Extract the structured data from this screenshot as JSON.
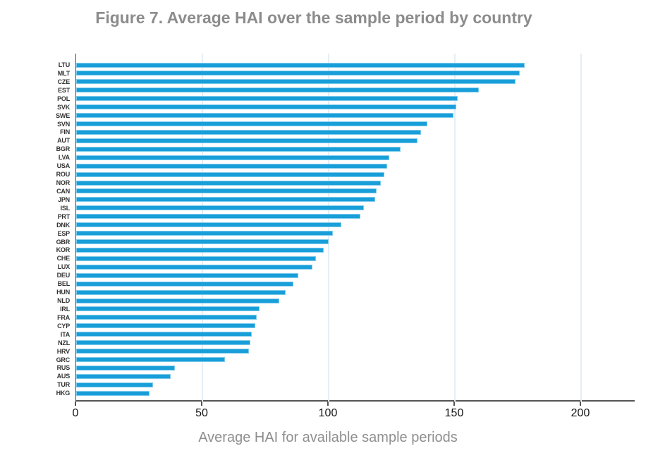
{
  "figure": {
    "title": "Figure 7. Average HAI over the sample period by country"
  },
  "chart_data": {
    "type": "bar",
    "orientation": "horizontal",
    "title": "Figure 7. Average HAI over the sample period by country",
    "xlabel": "Average HAI for available sample periods",
    "ylabel": "",
    "xlim": [
      0,
      200
    ],
    "xticks": [
      0,
      50,
      100,
      150,
      200
    ],
    "grid": "vertical-light",
    "legend": "none",
    "sort": "descending",
    "categories": [
      "LTU",
      "MLT",
      "CZE",
      "EST",
      "POL",
      "SVK",
      "SWE",
      "SVN",
      "FIN",
      "AUT",
      "BGR",
      "LVA",
      "USA",
      "ROU",
      "NOR",
      "CAN",
      "JPN",
      "ISL",
      "PRT",
      "DNK",
      "ESP",
      "GBR",
      "KOR",
      "CHE",
      "LUX",
      "DEU",
      "BEL",
      "HUN",
      "NLD",
      "IRL",
      "FRA",
      "CYP",
      "ITA",
      "NZL",
      "HRV",
      "GRC",
      "RUS",
      "AUS",
      "TUR",
      "HKG"
    ],
    "values": [
      177,
      175,
      173.5,
      159,
      150.5,
      150,
      149,
      138.5,
      136,
      134.5,
      128,
      123.5,
      122.5,
      121.5,
      120,
      118.5,
      118,
      113.5,
      112,
      104.5,
      101,
      99.5,
      97.5,
      94.5,
      93,
      87.5,
      85.5,
      82.5,
      80,
      72,
      71,
      70.5,
      69,
      68.5,
      68,
      58.5,
      38.5,
      37,
      30,
      28.5
    ]
  },
  "colors": {
    "bar_fill": "#189ED9",
    "bar_edge": "#7FCBEC",
    "gridline": "#E4EEF5",
    "axis_line": "#4A4A4A",
    "tick_text": "#161616",
    "muted_text": "#8F8F8F",
    "title_text": "#8C8C8C",
    "category_text": "#333333",
    "background": "#FFFFFF"
  }
}
